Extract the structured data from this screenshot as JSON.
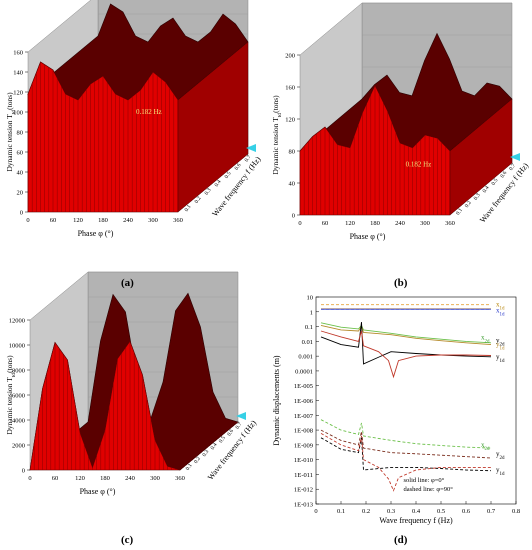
{
  "figure": {
    "captions": [
      "(a)",
      "(b)",
      "(c)",
      "(d)"
    ]
  },
  "chart_data": [
    {
      "type": "surface",
      "panel": "a",
      "zlabel": "Dynamic tension T_{td}(tons)",
      "xlabel": "Phase φ (°)",
      "ylabel": "Wave frequency f (Hz)",
      "z_ticks": [
        "0",
        "20",
        "40",
        "60",
        "80",
        "100",
        "120",
        "140",
        "160"
      ],
      "x_ticks": [
        "0",
        "60",
        "120",
        "180",
        "240",
        "300",
        "360"
      ],
      "y_ticks": [
        "0.1",
        "0.2",
        "0.3",
        "0.4",
        "0.5",
        "0.6",
        "0.7"
      ],
      "annotation": "0.182 Hz",
      "profile_phase": [
        0,
        30,
        60,
        90,
        120,
        150,
        180,
        210,
        240,
        270,
        300,
        330,
        360
      ],
      "profile_tension": [
        118,
        150,
        142,
        118,
        112,
        128,
        136,
        118,
        112,
        122,
        140,
        130,
        112
      ],
      "base_level": 112,
      "surface_color": "#e00000"
    },
    {
      "type": "surface",
      "panel": "b",
      "zlabel": "Dynamic tension T_{td}(tons)",
      "xlabel": "Phase φ (°)",
      "ylabel": "Wave frequency f (Hz)",
      "z_ticks": [
        "0",
        "40",
        "80",
        "120",
        "160",
        "200"
      ],
      "x_ticks": [
        "0",
        "60",
        "120",
        "180",
        "240",
        "300",
        "360"
      ],
      "y_ticks": [
        "0.1",
        "0.2",
        "0.3",
        "0.4",
        "0.5",
        "0.6",
        "0.7"
      ],
      "annotation": "0.182 Hz",
      "profile_phase": [
        0,
        30,
        60,
        90,
        120,
        150,
        180,
        210,
        240,
        270,
        300,
        330,
        360
      ],
      "profile_tension": [
        80,
        98,
        110,
        88,
        84,
        128,
        162,
        130,
        90,
        84,
        100,
        96,
        80
      ],
      "base_level": 78,
      "surface_color": "#e00000"
    },
    {
      "type": "surface",
      "panel": "c",
      "zlabel": "Dynamic tension T_{td}(tons)",
      "xlabel": "Phase φ (°)",
      "ylabel": "Wave frequency f (Hz)",
      "z_ticks": [
        "0",
        "2000",
        "4000",
        "6000",
        "8000",
        "10000",
        "12000"
      ],
      "x_ticks": [
        "0",
        "60",
        "120",
        "180",
        "240",
        "300",
        "360"
      ],
      "y_ticks": [
        "0.1",
        "0.2",
        "0.3",
        "0.4",
        "0.5",
        "0.6",
        "0.7"
      ],
      "profile_phase": [
        0,
        30,
        60,
        90,
        120,
        150,
        180,
        210,
        240,
        270,
        300,
        330,
        360
      ],
      "profile_tension": [
        0,
        6500,
        10200,
        8800,
        3000,
        200,
        3200,
        8900,
        10300,
        7600,
        2400,
        300,
        0
      ],
      "base_level": 0,
      "surface_color": "#e00000"
    },
    {
      "type": "line",
      "panel": "d",
      "scale": "log",
      "xlabel": "Wave frequency f (Hz)",
      "ylabel": "Dynamic displacements (m)",
      "xlim": [
        0,
        0.8
      ],
      "x_ticks": [
        "0",
        "0.1",
        "0.2",
        "0.3",
        "0.4",
        "0.5",
        "0.6",
        "0.7",
        "0.8"
      ],
      "y_ticks": [
        "10",
        "1",
        "0.1",
        "0.01",
        "0.001",
        "0.0001",
        "1E-005",
        "1E-006",
        "1E-007",
        "1E-008",
        "1E-009",
        "1E-010",
        "1E-011",
        "1E-012",
        "1E-013"
      ],
      "ylim_exp": [
        -13,
        1
      ],
      "note_lines": [
        "solid line: φ=0°",
        "dashed line: φ=90°"
      ],
      "series": [
        {
          "name": "x_{1d}",
          "style": "dashed",
          "color": "#e7a33a",
          "x": [
            0.02,
            0.7
          ],
          "y": [
            3.0,
            3.0
          ]
        },
        {
          "name": "x_{1d}",
          "style": "dashed",
          "color": "#2536c8",
          "x": [
            0.02,
            0.7
          ],
          "y": [
            1.5,
            1.5
          ]
        },
        {
          "name": "x_{1d}",
          "style": "solid",
          "color": "#e7a33a",
          "x": [
            0.02,
            0.7
          ],
          "y": [
            1.6,
            1.6
          ]
        },
        {
          "name": "x_{1d}",
          "style": "solid",
          "color": "#2536c8",
          "x": [
            0.02,
            0.7
          ],
          "y": [
            1.5,
            1.5
          ]
        },
        {
          "name": "x_{2d}",
          "style": "solid",
          "color": "#6cc04a",
          "x": [
            0.02,
            0.1,
            0.17,
            0.182,
            0.19,
            0.3,
            0.4,
            0.5,
            0.6,
            0.7
          ],
          "y": [
            0.18,
            0.09,
            0.07,
            0.12,
            0.06,
            0.035,
            0.02,
            0.014,
            0.01,
            0.008
          ]
        },
        {
          "name": "y_{2d}",
          "style": "solid",
          "color": "#b58a2a",
          "x": [
            0.02,
            0.1,
            0.17,
            0.182,
            0.19,
            0.3,
            0.4,
            0.5,
            0.6,
            0.7
          ],
          "y": [
            0.12,
            0.06,
            0.05,
            0.1,
            0.04,
            0.028,
            0.016,
            0.011,
            0.008,
            0.006
          ]
        },
        {
          "name": "y_{1d}",
          "style": "solid",
          "color": "#000000",
          "x": [
            0.02,
            0.1,
            0.17,
            0.182,
            0.19,
            0.3,
            0.4,
            0.5,
            0.6,
            0.7
          ],
          "y": [
            0.02,
            0.006,
            0.004,
            0.2,
            0.0003,
            0.002,
            0.0015,
            0.0012,
            0.001,
            0.0009
          ]
        },
        {
          "name": "y_{1d}",
          "style": "solid",
          "color": "#c0392b",
          "x": [
            0.02,
            0.1,
            0.17,
            0.182,
            0.19,
            0.25,
            0.29,
            0.31,
            0.33,
            0.4,
            0.5,
            0.6,
            0.7
          ],
          "y": [
            0.05,
            0.02,
            0.01,
            0.05,
            0.005,
            0.002,
            0.0005,
            4e-05,
            0.0005,
            0.001,
            0.0012,
            0.0012,
            0.0011
          ]
        },
        {
          "name": "x_{2d}",
          "style": "dashed",
          "color": "#6cc04a",
          "x": [
            0.02,
            0.1,
            0.17,
            0.182,
            0.19,
            0.3,
            0.4,
            0.5,
            0.6,
            0.7
          ],
          "y": [
            5e-08,
            1e-08,
            5e-09,
            3e-08,
            4e-09,
            2e-09,
            1.2e-09,
            9e-10,
            7e-10,
            6e-10
          ]
        },
        {
          "name": "y_{2d}",
          "style": "dashed",
          "color": "#7b2e1e",
          "x": [
            0.02,
            0.1,
            0.17,
            0.182,
            0.19,
            0.3,
            0.4,
            0.5,
            0.6,
            0.7
          ],
          "y": [
            1e-08,
            2e-09,
            1e-09,
            8e-09,
            6e-10,
            3e-10,
            2.5e-10,
            2e-10,
            1.6e-10,
            1.3e-10
          ]
        },
        {
          "name": "y_{1d}",
          "style": "dashed",
          "color": "#000000",
          "x": [
            0.02,
            0.1,
            0.17,
            0.182,
            0.19,
            0.3,
            0.4,
            0.5,
            0.6,
            0.7
          ],
          "y": [
            3e-09,
            5e-10,
            3e-10,
            3e-09,
            2e-11,
            3e-11,
            3e-11,
            2.5e-11,
            2e-11,
            1.8e-11
          ]
        },
        {
          "name": "y_{1d}",
          "style": "dashed",
          "color": "#c0392b",
          "x": [
            0.02,
            0.1,
            0.17,
            0.182,
            0.19,
            0.25,
            0.29,
            0.31,
            0.33,
            0.4,
            0.5,
            0.6,
            0.7
          ],
          "y": [
            6e-09,
            1e-09,
            4e-10,
            4e-09,
            1e-10,
            3e-11,
            5e-12,
            8e-13,
            6e-12,
            2e-11,
            3e-11,
            3e-11,
            3e-11
          ]
        }
      ],
      "labels": [
        {
          "text": "x",
          "sub": "1d",
          "x": 0.72,
          "y": 3.0,
          "color": "#b8860b"
        },
        {
          "text": "x",
          "sub": "1d",
          "x": 0.72,
          "y": 1.2,
          "color": "#2536c8"
        },
        {
          "text": "x",
          "sub": "2d",
          "x": 0.66,
          "y": 0.018,
          "color": "#3a9c2e"
        },
        {
          "text": "y",
          "sub": "2d",
          "x": 0.72,
          "y": 0.011,
          "color": "#000000"
        },
        {
          "text": "y",
          "sub": "1d",
          "x": 0.72,
          "y": 0.006,
          "color": "#b58a2a"
        },
        {
          "text": "y",
          "sub": "1d",
          "x": 0.72,
          "y": 0.0009,
          "color": "#000000"
        },
        {
          "text": "x",
          "sub": "2d",
          "x": 0.66,
          "y": 1e-09,
          "color": "#3a9c2e"
        },
        {
          "text": "y",
          "sub": "2d",
          "x": 0.72,
          "y": 2.5e-10,
          "color": "#000000"
        },
        {
          "text": "y",
          "sub": "1d",
          "x": 0.72,
          "y": 2e-11,
          "color": "#000000"
        }
      ]
    }
  ]
}
